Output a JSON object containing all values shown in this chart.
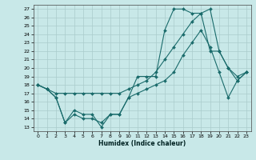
{
  "xlabel": "Humidex (Indice chaleur)",
  "background_color": "#c8e8e8",
  "grid_color": "#aacccc",
  "line_color": "#1a6b6b",
  "xlim": [
    -0.5,
    23.5
  ],
  "ylim": [
    12.5,
    27.5
  ],
  "yticks": [
    13,
    14,
    15,
    16,
    17,
    18,
    19,
    20,
    21,
    22,
    23,
    24,
    25,
    26,
    27
  ],
  "xticks": [
    0,
    1,
    2,
    3,
    4,
    5,
    6,
    7,
    8,
    9,
    10,
    11,
    12,
    13,
    14,
    15,
    16,
    17,
    18,
    19,
    20,
    21,
    22,
    23
  ],
  "line1_x": [
    0,
    1,
    2,
    3,
    4,
    5,
    6,
    7,
    8,
    9,
    10,
    11,
    12,
    13,
    14,
    15,
    16,
    17,
    18,
    19,
    20,
    21,
    22,
    23
  ],
  "line1_y": [
    18.0,
    17.5,
    16.5,
    13.5,
    15.0,
    14.5,
    14.5,
    13.0,
    14.5,
    14.5,
    16.5,
    19.0,
    19.0,
    19.0,
    24.5,
    27.0,
    27.0,
    26.5,
    26.5,
    22.0,
    22.0,
    20.0,
    18.5,
    19.5
  ],
  "line2_x": [
    0,
    1,
    2,
    3,
    4,
    5,
    6,
    7,
    8,
    9,
    10,
    11,
    12,
    13,
    14,
    15,
    16,
    17,
    18,
    19,
    20,
    21,
    22,
    23
  ],
  "line2_y": [
    18.0,
    17.5,
    17.0,
    17.0,
    17.0,
    17.0,
    17.0,
    17.0,
    17.0,
    17.0,
    17.5,
    18.0,
    18.5,
    19.5,
    21.0,
    22.5,
    24.0,
    25.5,
    26.5,
    27.0,
    22.0,
    20.0,
    19.0,
    19.5
  ],
  "line3_x": [
    0,
    1,
    2,
    3,
    4,
    5,
    6,
    7,
    8,
    9,
    10,
    11,
    12,
    13,
    14,
    15,
    16,
    17,
    18,
    19,
    20,
    21,
    22,
    23
  ],
  "line3_y": [
    18.0,
    17.5,
    16.5,
    13.5,
    14.5,
    14.0,
    14.0,
    13.5,
    14.5,
    14.5,
    16.5,
    17.0,
    17.5,
    18.0,
    18.5,
    19.5,
    21.5,
    23.0,
    24.5,
    22.5,
    19.5,
    16.5,
    18.5,
    19.5
  ]
}
